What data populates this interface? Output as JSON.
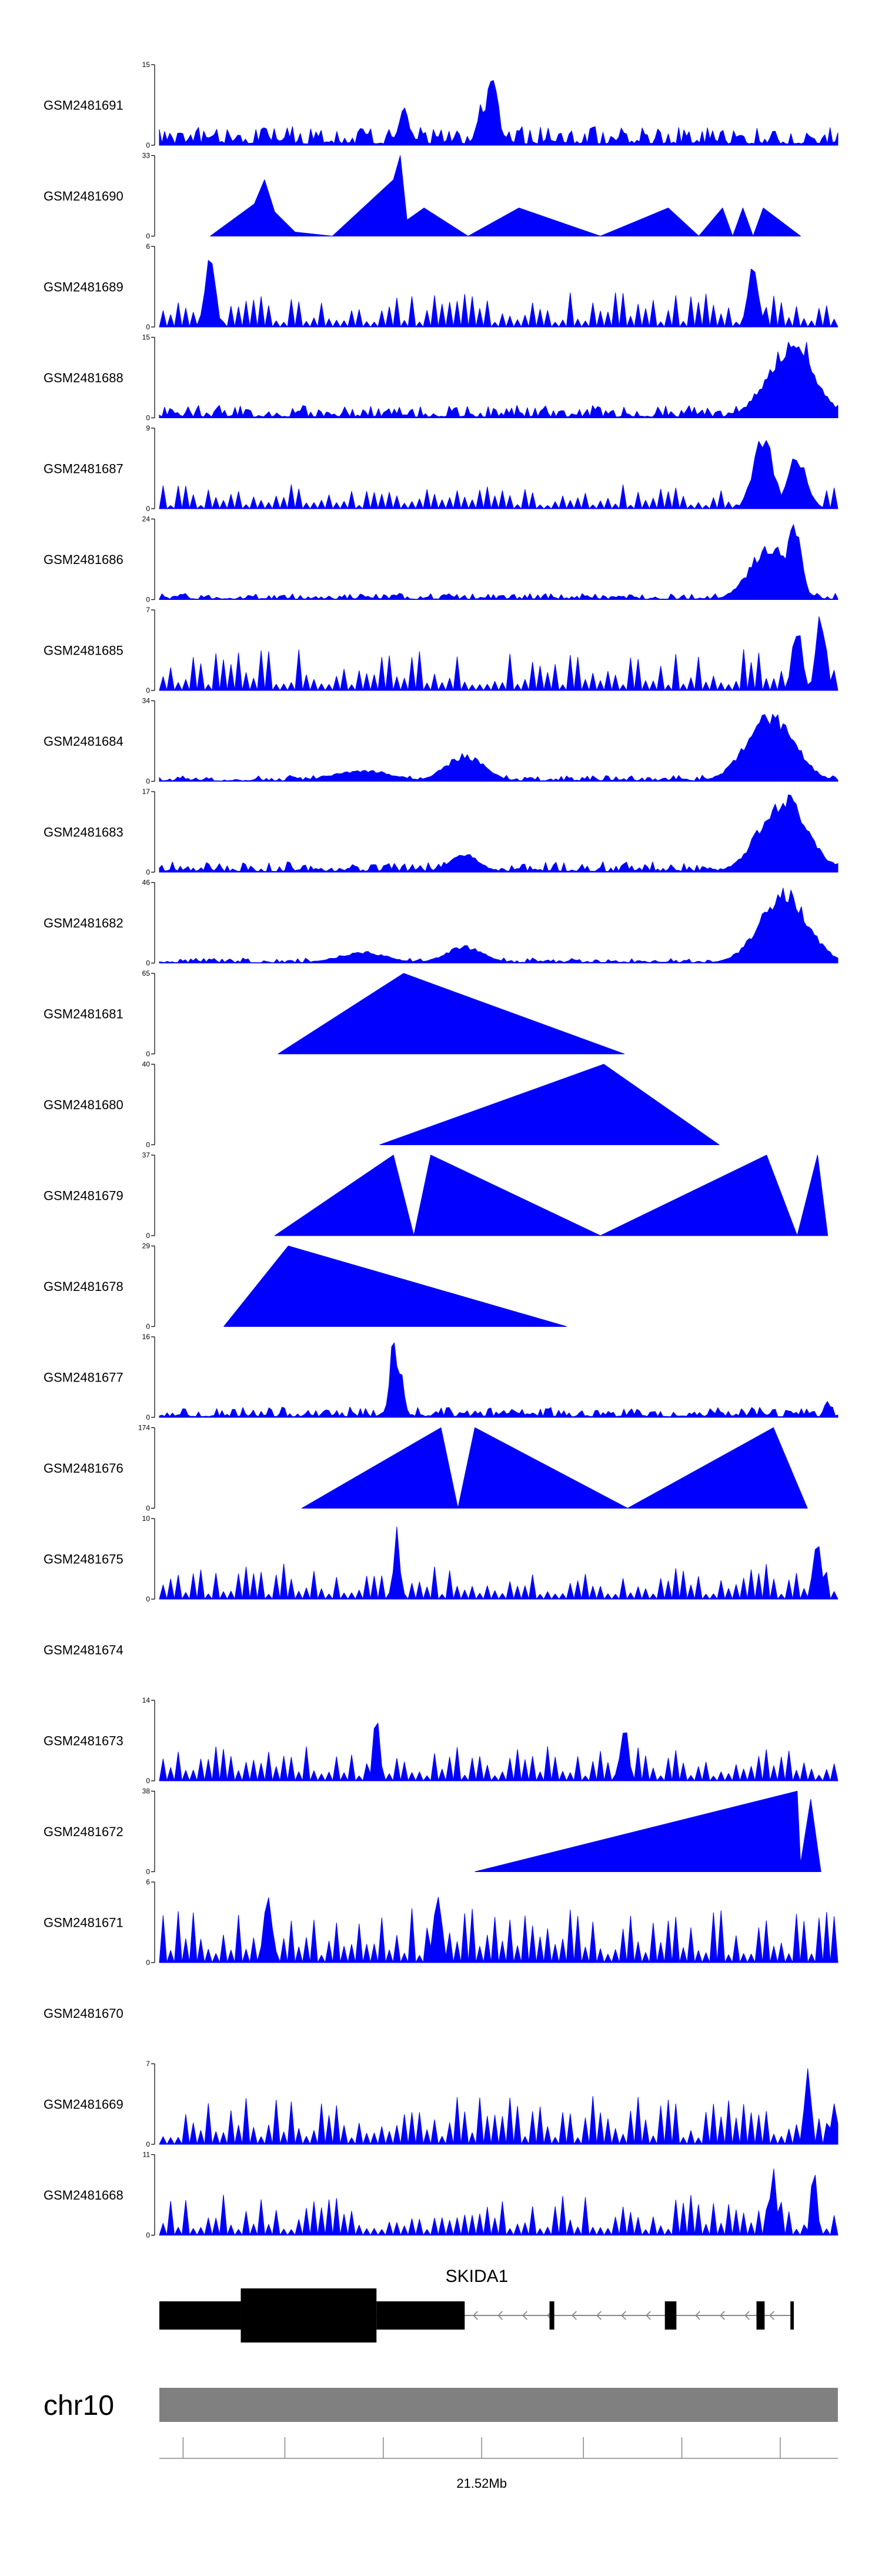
{
  "chart_data": {
    "type": "area",
    "title": "",
    "fill_color": "#0000ff",
    "tracks": [
      {
        "name": "GSM2481691",
        "ymax": 15,
        "ymin": 0,
        "mode": "dense",
        "seed": 11,
        "peaks": [
          {
            "x": 0.49,
            "h": 1.0,
            "w": 0.012
          },
          {
            "x": 0.475,
            "h": 0.55,
            "w": 0.01
          },
          {
            "x": 0.36,
            "h": 0.5,
            "w": 0.008
          },
          {
            "x": 0.36,
            "h": 0.5,
            "w": 0.01
          }
        ],
        "base": 0.18
      },
      {
        "name": "GSM2481690",
        "ymax": 33,
        "ymin": 0,
        "mode": "tri",
        "seed": 12,
        "peaks": [
          {
            "x": 0.075,
            "h": 0,
            "w": 0
          },
          {
            "x": 0.14,
            "h": 0.4,
            "w": 0
          },
          {
            "x": 0.155,
            "h": 0.7,
            "w": 0
          },
          {
            "x": 0.17,
            "h": 0.3,
            "w": 0
          },
          {
            "x": 0.2,
            "h": 0.05,
            "w": 0
          },
          {
            "x": 0.255,
            "h": 0,
            "w": 0
          },
          {
            "x": 0.345,
            "h": 0.7,
            "w": 0
          },
          {
            "x": 0.355,
            "h": 1.0,
            "w": 0
          },
          {
            "x": 0.365,
            "h": 0.2,
            "w": 0
          },
          {
            "x": 0.39,
            "h": 0.35,
            "w": 0
          },
          {
            "x": 0.455,
            "h": 0,
            "w": 0
          },
          {
            "x": 0.53,
            "h": 0.35,
            "w": 0
          },
          {
            "x": 0.65,
            "h": 0,
            "w": 0
          },
          {
            "x": 0.75,
            "h": 0.35,
            "w": 0
          },
          {
            "x": 0.795,
            "h": 0,
            "w": 0
          },
          {
            "x": 0.83,
            "h": 0.35,
            "w": 0
          },
          {
            "x": 0.845,
            "h": 0,
            "w": 0
          },
          {
            "x": 0.86,
            "h": 0.35,
            "w": 0
          },
          {
            "x": 0.875,
            "h": 0,
            "w": 0
          },
          {
            "x": 0.89,
            "h": 0.35,
            "w": 0
          },
          {
            "x": 0.945,
            "h": 0
          }
        ]
      },
      {
        "name": "GSM2481689",
        "ymax": 6,
        "ymin": 0,
        "mode": "spiky",
        "seed": 13,
        "peaks": [
          {
            "x": 0.075,
            "h": 1.0,
            "w": 0.01
          },
          {
            "x": 0.875,
            "h": 0.95,
            "w": 0.01
          }
        ],
        "base": 0.3
      },
      {
        "name": "GSM2481688",
        "ymax": 15,
        "ymin": 0,
        "mode": "dense",
        "seed": 14,
        "peaks": [
          {
            "x": 0.93,
            "h": 0.95,
            "w": 0.05
          },
          {
            "x": 0.95,
            "h": 1.0,
            "w": 0.02
          }
        ],
        "base": 0.12
      },
      {
        "name": "GSM2481687",
        "ymax": 9,
        "ymin": 0,
        "mode": "spiky",
        "seed": 15,
        "peaks": [
          {
            "x": 0.89,
            "h": 1.0,
            "w": 0.02
          },
          {
            "x": 0.94,
            "h": 0.7,
            "w": 0.02
          }
        ],
        "base": 0.2
      },
      {
        "name": "GSM2481686",
        "ymax": 24,
        "ymin": 0,
        "mode": "dense",
        "seed": 16,
        "peaks": [
          {
            "x": 0.9,
            "h": 0.75,
            "w": 0.04
          },
          {
            "x": 0.935,
            "h": 1.0,
            "w": 0.015
          }
        ],
        "base": 0.06
      },
      {
        "name": "GSM2481685",
        "ymax": 7,
        "ymin": 0,
        "mode": "spiky",
        "seed": 17,
        "peaks": [
          {
            "x": 0.975,
            "h": 1.0,
            "w": 0.01
          },
          {
            "x": 0.94,
            "h": 0.85,
            "w": 0.01
          }
        ],
        "base": 0.35
      },
      {
        "name": "GSM2481684",
        "ymax": 34,
        "ymin": 0,
        "mode": "dense",
        "seed": 18,
        "peaks": [
          {
            "x": 0.9,
            "h": 0.9,
            "w": 0.05
          },
          {
            "x": 0.45,
            "h": 0.35,
            "w": 0.04
          },
          {
            "x": 0.3,
            "h": 0.15,
            "w": 0.06
          }
        ],
        "base": 0.06
      },
      {
        "name": "GSM2481683",
        "ymax": 17,
        "ymin": 0,
        "mode": "dense",
        "seed": 19,
        "peaks": [
          {
            "x": 0.92,
            "h": 1.0,
            "w": 0.05
          },
          {
            "x": 0.45,
            "h": 0.25,
            "w": 0.03
          }
        ],
        "base": 0.1
      },
      {
        "name": "GSM2481682",
        "ymax": 46,
        "ymin": 0,
        "mode": "dense",
        "seed": 20,
        "peaks": [
          {
            "x": 0.92,
            "h": 0.95,
            "w": 0.05
          },
          {
            "x": 0.45,
            "h": 0.22,
            "w": 0.04
          },
          {
            "x": 0.3,
            "h": 0.15,
            "w": 0.05
          }
        ],
        "base": 0.05
      },
      {
        "name": "GSM2481681",
        "ymax": 65,
        "ymin": 0,
        "mode": "tri",
        "peaks": [
          {
            "x": 0.175,
            "h": 0
          },
          {
            "x": 0.36,
            "h": 1.0
          },
          {
            "x": 0.685,
            "h": 0
          }
        ]
      },
      {
        "name": "GSM2481680",
        "ymax": 40,
        "ymin": 0,
        "mode": "tri",
        "peaks": [
          {
            "x": 0.325,
            "h": 0
          },
          {
            "x": 0.655,
            "h": 1.0
          },
          {
            "x": 0.825,
            "h": 0
          }
        ]
      },
      {
        "name": "GSM2481679",
        "ymax": 37,
        "ymin": 0,
        "mode": "tri",
        "peaks": [
          {
            "x": 0.17,
            "h": 0
          },
          {
            "x": 0.345,
            "h": 1.0
          },
          {
            "x": 0.375,
            "h": 0
          },
          {
            "x": 0.4,
            "h": 1.0
          },
          {
            "x": 0.65,
            "h": 0
          },
          {
            "x": 0.895,
            "h": 1.0
          },
          {
            "x": 0.94,
            "h": 0
          },
          {
            "x": 0.97,
            "h": 1.0
          },
          {
            "x": 0.985,
            "h": 0
          }
        ]
      },
      {
        "name": "GSM2481678",
        "ymax": 29,
        "ymin": 0,
        "mode": "tri",
        "peaks": [
          {
            "x": 0.095,
            "h": 0
          },
          {
            "x": 0.19,
            "h": 1.0
          },
          {
            "x": 0.6,
            "h": 0
          }
        ]
      },
      {
        "name": "GSM2481677",
        "ymax": 16,
        "ymin": 0,
        "mode": "dense",
        "seed": 21,
        "peaks": [
          {
            "x": 0.345,
            "h": 1.0,
            "w": 0.008
          },
          {
            "x": 0.355,
            "h": 0.6,
            "w": 0.008
          },
          {
            "x": 0.985,
            "h": 0.25,
            "w": 0.006
          }
        ],
        "base": 0.1
      },
      {
        "name": "GSM2481676",
        "ymax": 174,
        "ymin": 0,
        "mode": "tri",
        "peaks": [
          {
            "x": 0.21,
            "h": 0
          },
          {
            "x": 0.415,
            "h": 1.0
          },
          {
            "x": 0.44,
            "h": 0
          },
          {
            "x": 0.465,
            "h": 1.0
          },
          {
            "x": 0.69,
            "h": 0
          },
          {
            "x": 0.905,
            "h": 1.0
          },
          {
            "x": 0.955,
            "h": 0
          }
        ]
      },
      {
        "name": "GSM2481675",
        "ymax": 10,
        "ymin": 0,
        "mode": "spiky",
        "seed": 22,
        "peaks": [
          {
            "x": 0.35,
            "h": 1.0,
            "w": 0.006
          },
          {
            "x": 0.97,
            "h": 0.75,
            "w": 0.008
          }
        ],
        "base": 0.3
      },
      {
        "name": "GSM2481674",
        "ymax": null,
        "ymin": null,
        "mode": "empty",
        "peaks": []
      },
      {
        "name": "GSM2481673",
        "ymax": 14,
        "ymin": 0,
        "mode": "spiky",
        "seed": 23,
        "peaks": [
          {
            "x": 0.32,
            "h": 1.0,
            "w": 0.006
          },
          {
            "x": 0.685,
            "h": 0.8,
            "w": 0.008
          }
        ],
        "base": 0.3
      },
      {
        "name": "GSM2481672",
        "ymax": 38,
        "ymin": 0,
        "mode": "tri",
        "peaks": [
          {
            "x": 0.465,
            "h": 0
          },
          {
            "x": 0.94,
            "h": 1.0
          },
          {
            "x": 0.945,
            "h": 0.1
          },
          {
            "x": 0.96,
            "h": 0.9
          },
          {
            "x": 0.975,
            "h": 0
          }
        ]
      },
      {
        "name": "GSM2481671",
        "ymax": 6,
        "ymin": 0,
        "mode": "spiky",
        "seed": 24,
        "peaks": [
          {
            "x": 0.16,
            "h": 1.0,
            "w": 0.008
          },
          {
            "x": 0.41,
            "h": 0.95,
            "w": 0.008
          }
        ],
        "base": 0.45
      },
      {
        "name": "GSM2481670",
        "ymax": null,
        "ymin": null,
        "mode": "empty",
        "peaks": []
      },
      {
        "name": "GSM2481669",
        "ymax": 7,
        "ymin": 0,
        "mode": "spiky",
        "seed": 25,
        "peaks": [
          {
            "x": 0.955,
            "h": 1.0,
            "w": 0.006
          },
          {
            "x": 0.995,
            "h": 0.6,
            "w": 0.006
          }
        ],
        "base": 0.4
      },
      {
        "name": "GSM2481668",
        "ymax": 11,
        "ymin": 0,
        "mode": "spiky",
        "seed": 26,
        "peaks": [
          {
            "x": 0.905,
            "h": 1.0,
            "w": 0.006
          },
          {
            "x": 0.965,
            "h": 0.95,
            "w": 0.006
          }
        ],
        "base": 0.35
      }
    ],
    "gene": {
      "name": "SKIDA1",
      "strand": "-",
      "exons": [
        {
          "start": 0.0,
          "end": 0.12,
          "type": "utr"
        },
        {
          "start": 0.12,
          "end": 0.32,
          "type": "cds"
        },
        {
          "start": 0.32,
          "end": 0.45,
          "type": "utr"
        },
        {
          "start": 0.575,
          "end": 0.582,
          "type": "utr"
        },
        {
          "start": 0.745,
          "end": 0.762,
          "type": "utr"
        },
        {
          "start": 0.88,
          "end": 0.892,
          "type": "utr"
        },
        {
          "start": 0.93,
          "end": 0.935,
          "type": "utr"
        }
      ]
    },
    "axis": {
      "chromosome": "chr10",
      "tick_label": "21.52Mb",
      "tick_label_fraction": 0.475,
      "ticks": [
        0.035,
        0.185,
        0.33,
        0.475,
        0.625,
        0.77,
        0.915
      ]
    }
  }
}
